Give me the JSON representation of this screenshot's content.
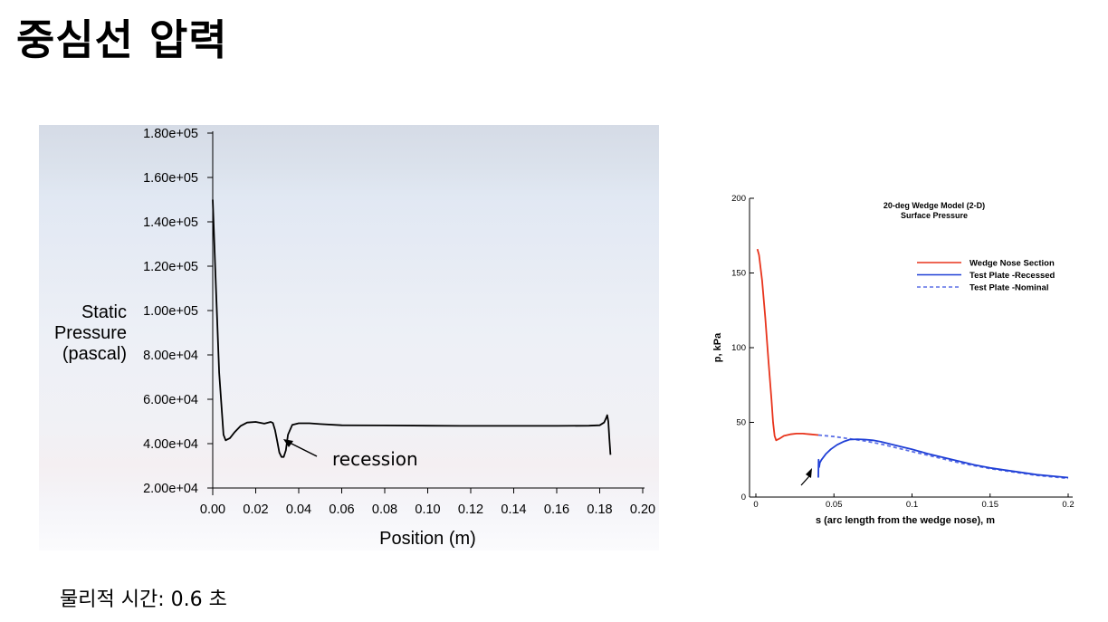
{
  "slide": {
    "title": "중심선 압력",
    "footer": "물리적 시간: 0.6 초"
  },
  "chart_data": [
    {
      "type": "line",
      "xlabel": "Position (m)",
      "ylabel": [
        "Static",
        "Pressure",
        "(pascal)"
      ],
      "xlim": [
        0,
        0.2
      ],
      "ylim": [
        20000,
        180000
      ],
      "x_ticks": [
        "0.00",
        "0.02",
        "0.04",
        "0.06",
        "0.08",
        "0.10",
        "0.12",
        "0.14",
        "0.16",
        "0.18",
        "0.20"
      ],
      "y_ticks": [
        "2.00e+04",
        "4.00e+04",
        "6.00e+04",
        "8.00e+04",
        "1.00e+05",
        "1.20e+05",
        "1.40e+05",
        "1.60e+05",
        "1.80e+05"
      ],
      "annotation": "recession",
      "series": [
        {
          "x": [
            0.0,
            0.0015,
            0.003,
            0.005,
            0.006,
            0.008,
            0.01,
            0.013,
            0.016,
            0.02,
            0.024,
            0.027,
            0.028,
            0.029,
            0.03,
            0.031,
            0.032,
            0.033,
            0.034,
            0.035,
            0.037,
            0.04,
            0.045,
            0.05,
            0.06,
            0.08,
            0.1,
            0.12,
            0.14,
            0.16,
            0.175,
            0.18,
            0.182,
            0.183,
            0.1835,
            0.184,
            0.1845,
            0.185
          ],
          "y": [
            150000,
            110000,
            72000,
            44000,
            41500,
            42500,
            45000,
            48000,
            49500,
            49800,
            49000,
            49800,
            49300,
            46000,
            41000,
            36000,
            34000,
            34000,
            37000,
            44000,
            48500,
            49200,
            49200,
            48800,
            48300,
            48200,
            48100,
            48000,
            48000,
            48000,
            48100,
            48300,
            49500,
            51500,
            52800,
            50000,
            42000,
            35000
          ]
        }
      ]
    },
    {
      "type": "line",
      "title": "20-deg Wedge Model (2-D)",
      "subtitle": "Surface Pressure",
      "xlabel": "s (arc length from the wedge nose), m",
      "ylabel": "p, kPa",
      "xlim": [
        0,
        0.2
      ],
      "ylim": [
        0,
        200
      ],
      "x_ticks": [
        "0",
        "0.05",
        "0.1",
        "0.15",
        "0.2"
      ],
      "y_ticks": [
        "0",
        "50",
        "100",
        "150",
        "200"
      ],
      "series": [
        {
          "name": "Wedge Nose Section",
          "color": "#e8341c",
          "x": [
            0.001,
            0.002,
            0.004,
            0.006,
            0.008,
            0.01,
            0.011,
            0.012,
            0.013,
            0.015,
            0.018,
            0.022,
            0.026,
            0.03,
            0.035,
            0.04
          ],
          "y": [
            166,
            162,
            145,
            120,
            92,
            65,
            50,
            41,
            38,
            39,
            41,
            42,
            42.5,
            42.5,
            42,
            41.5
          ]
        },
        {
          "name": "Test Plate -Recessed",
          "color": "#1f3fd6",
          "x": [
            0.04,
            0.0402,
            0.0405,
            0.041,
            0.042,
            0.045,
            0.048,
            0.052,
            0.056,
            0.06,
            0.065,
            0.07,
            0.075,
            0.08,
            0.09,
            0.1,
            0.11,
            0.12,
            0.13,
            0.14,
            0.15,
            0.16,
            0.17,
            0.18,
            0.19,
            0.2
          ],
          "y": [
            13,
            25,
            20,
            23,
            25,
            29,
            32,
            35,
            37,
            38.5,
            38.7,
            38.5,
            38,
            37,
            34.5,
            32,
            29,
            26.5,
            24,
            21.5,
            19.5,
            18,
            16.5,
            15,
            14,
            13
          ]
        },
        {
          "name": "Test Plate -Nominal",
          "color": "#5b6fe6",
          "dashed": true,
          "x": [
            0.04,
            0.05,
            0.06,
            0.07,
            0.08,
            0.09,
            0.1,
            0.11,
            0.12,
            0.13,
            0.14,
            0.15,
            0.16,
            0.17,
            0.18,
            0.19,
            0.2
          ],
          "y": [
            41.5,
            40.5,
            39,
            37.5,
            35.5,
            33,
            30.5,
            28,
            25.5,
            23,
            21,
            19,
            17.5,
            16,
            14.5,
            13.5,
            12.5
          ]
        }
      ]
    }
  ]
}
